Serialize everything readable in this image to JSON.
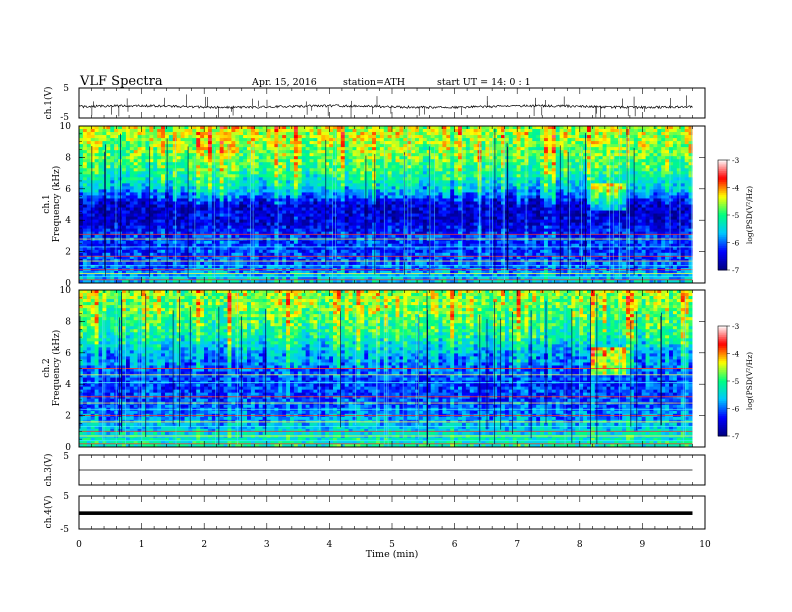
{
  "header": {
    "title": "VLF  Spectra",
    "date": "Apr. 15, 2016",
    "station": "station=ATH",
    "start": "start  UT  =   14: 0  : 1"
  },
  "chart_data": [
    {
      "type": "line",
      "channel": "ch.1(V)",
      "ylabel": "ch.1(V)",
      "ylim": [
        -5,
        5
      ],
      "yticks": [
        "5",
        "-5"
      ],
      "approx_level": -1.2,
      "approx_noise_amplitude": 0.8
    },
    {
      "type": "heatmap",
      "channel": "ch.1",
      "ylabel": "ch.1\nFrequency  (kHz)",
      "ylabel_lines": [
        "ch.1",
        "Frequency  (kHz)"
      ],
      "ylim": [
        0,
        10
      ],
      "yticks": [
        "0",
        "2",
        "4",
        "6",
        "8",
        "10"
      ],
      "colorbar": {
        "label": "log(PSD(V²/Hz)",
        "range": [
          -7,
          -3
        ],
        "ticks": [
          "-3",
          "-4",
          "-5",
          "-6",
          "-7"
        ]
      },
      "approx_psd_by_frequency_khz": [
        {
          "f": 0,
          "log_psd": -5.5
        },
        {
          "f": 1,
          "log_psd": -6.0
        },
        {
          "f": 2,
          "log_psd": -6.2
        },
        {
          "f": 3,
          "log_psd": -6.2
        },
        {
          "f": 4,
          "log_psd": -6.6
        },
        {
          "f": 5,
          "log_psd": -6.6
        },
        {
          "f": 6,
          "log_psd": -5.6
        },
        {
          "f": 7,
          "log_psd": -5.1
        },
        {
          "f": 8,
          "log_psd": -4.8
        },
        {
          "f": 9,
          "log_psd": -4.6
        },
        {
          "f": 10,
          "log_psd": -4.5
        }
      ]
    },
    {
      "type": "heatmap",
      "channel": "ch.2",
      "ylabel": "ch.2\nFrequency  (kHz)",
      "ylabel_lines": [
        "ch.2",
        "Frequency  (kHz)"
      ],
      "ylim": [
        0,
        10
      ],
      "yticks": [
        "0",
        "2",
        "4",
        "6",
        "8",
        "10"
      ],
      "colorbar": {
        "label": "log(PSD(V²/Hz)",
        "range": [
          -7,
          -3
        ],
        "ticks": [
          "-3",
          "-4",
          "-5",
          "-6",
          "-7"
        ]
      },
      "approx_psd_by_frequency_khz": [
        {
          "f": 0,
          "log_psd": -5.2
        },
        {
          "f": 1,
          "log_psd": -5.5
        },
        {
          "f": 2,
          "log_psd": -5.9
        },
        {
          "f": 3,
          "log_psd": -6.1
        },
        {
          "f": 4,
          "log_psd": -6.2
        },
        {
          "f": 5,
          "log_psd": -6.0
        },
        {
          "f": 6,
          "log_psd": -5.7
        },
        {
          "f": 7,
          "log_psd": -5.2
        },
        {
          "f": 8,
          "log_psd": -4.9
        },
        {
          "f": 9,
          "log_psd": -4.7
        },
        {
          "f": 10,
          "log_psd": -4.6
        }
      ]
    },
    {
      "type": "line",
      "channel": "ch.3(V)",
      "ylabel": "ch.3(V)",
      "ylim": [
        -5,
        5
      ],
      "yticks": [
        "5",
        "-5"
      ],
      "approx_level": 0.0
    },
    {
      "type": "line",
      "channel": "ch.4(V)",
      "ylabel": "ch.4(V)",
      "ylim": [
        -5,
        5
      ],
      "yticks": [
        "5",
        "-5"
      ],
      "approx_level": -0.2
    }
  ],
  "x_axis": {
    "label": "Time  (min)",
    "range": [
      0,
      10
    ],
    "data_extent_min": 9.8,
    "ticks": [
      "0",
      "1",
      "2",
      "3",
      "4",
      "5",
      "6",
      "7",
      "8",
      "9",
      "10"
    ]
  },
  "colors": {
    "colormap": [
      "#000080",
      "#0000ff",
      "#00c8ff",
      "#00ff80",
      "#ffff00",
      "#ff0000",
      "#ffffff"
    ],
    "trace": "#000000",
    "axis": "#000000"
  }
}
